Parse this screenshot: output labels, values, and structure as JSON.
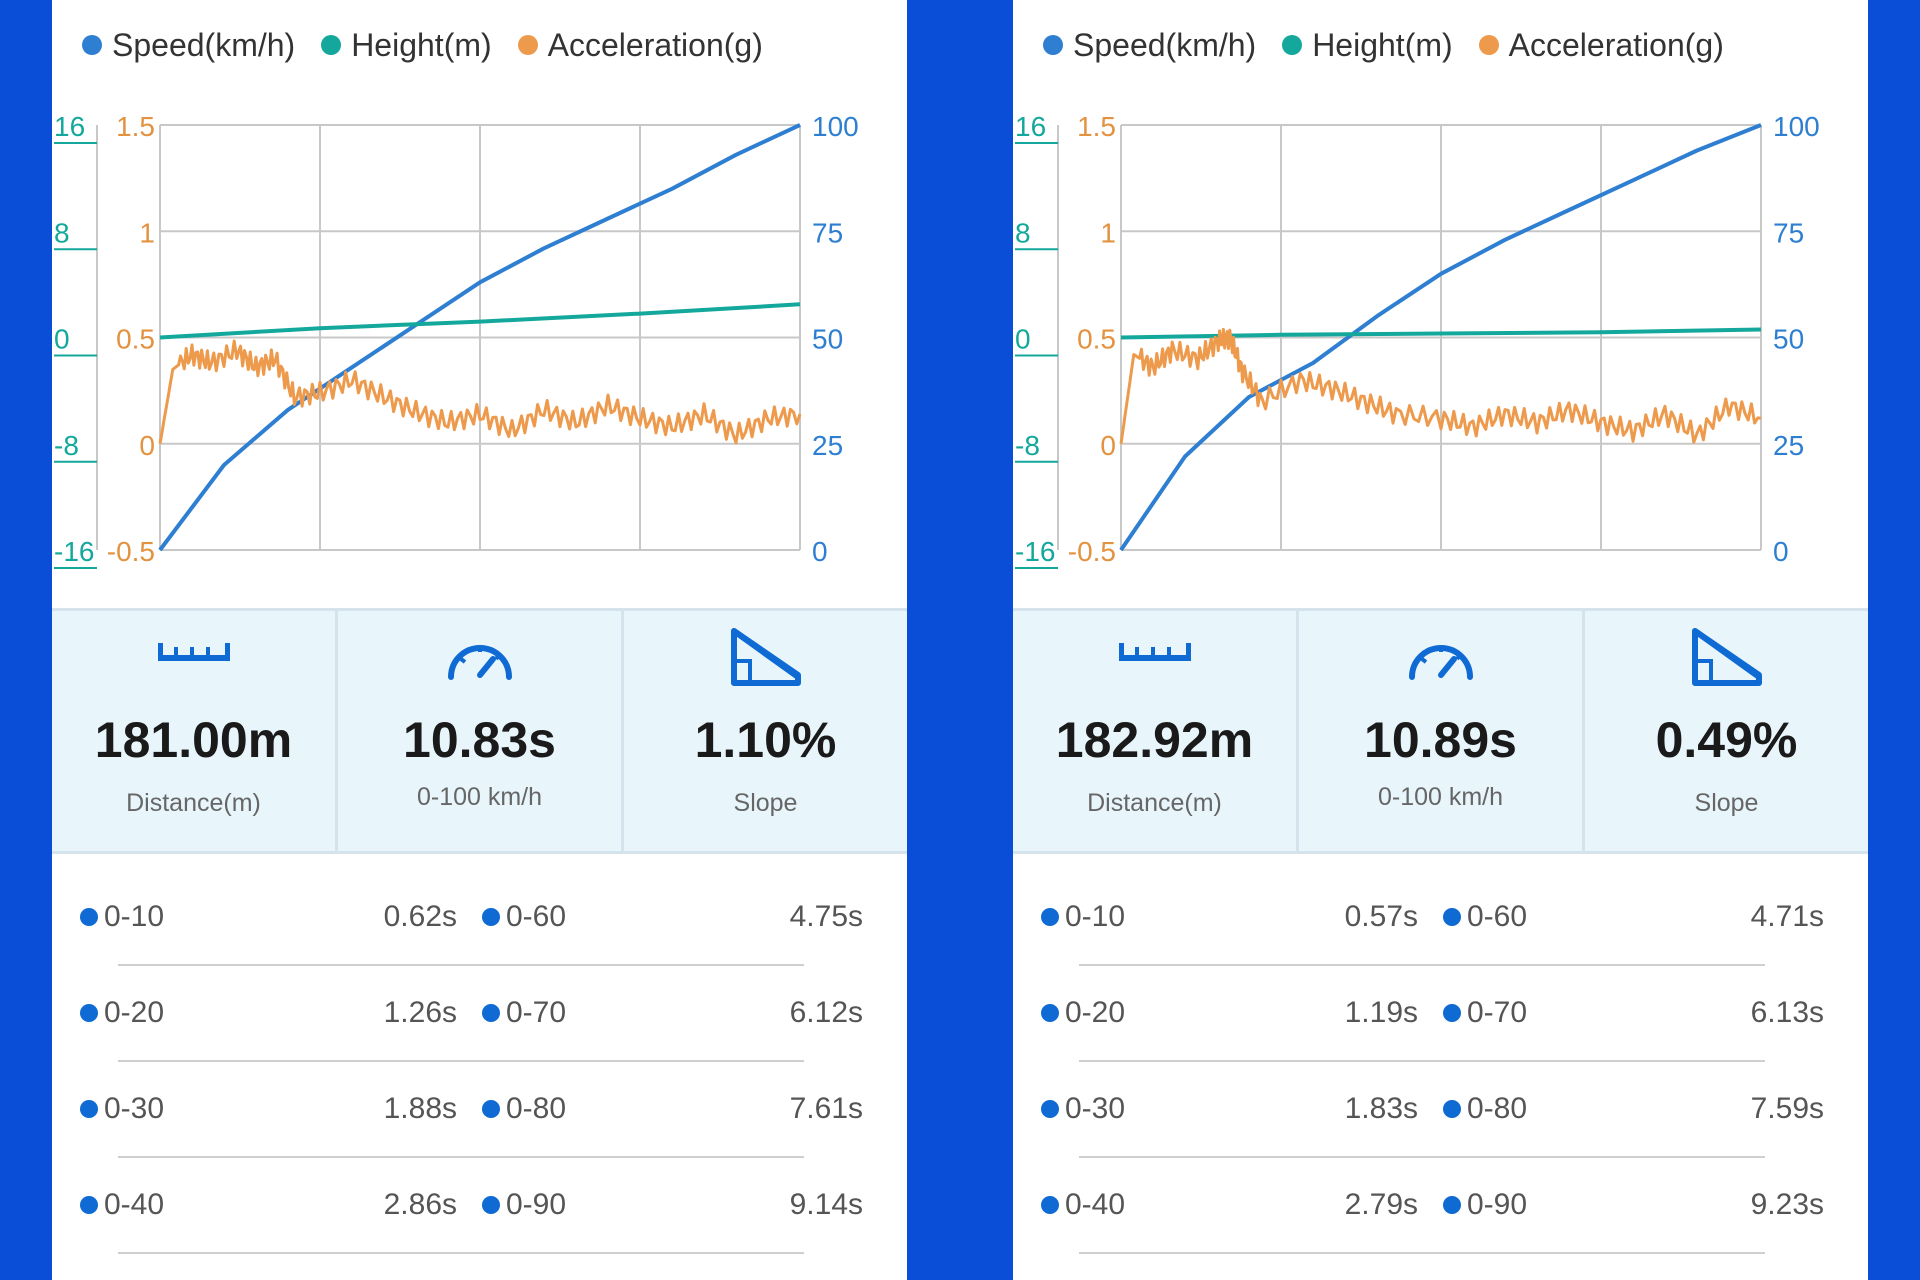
{
  "legend": [
    {
      "label": "Speed(km/h)",
      "color": "#2e7fd1"
    },
    {
      "label": "Height(m)",
      "color": "#14a89c"
    },
    {
      "label": "Acceleration(g)",
      "color": "#ee9a4d"
    }
  ],
  "colors": {
    "speed": "#2e7fd1",
    "height": "#14a89c",
    "acceleration": "#ee9a4d",
    "icon": "#0f6ad4"
  },
  "panels": [
    {
      "chart_data": {
        "type": "line",
        "axes": {
          "height_ticks": [
            "16",
            "8",
            "0",
            "-8",
            "-16"
          ],
          "accel_ticks": [
            "1.5",
            "1",
            "0.5",
            "0",
            "-0.5"
          ],
          "speed_ticks": [
            "100",
            "75",
            "50",
            "25",
            "0"
          ],
          "height_range": [
            -16,
            16
          ],
          "accel_range": [
            -0.5,
            1.5
          ],
          "speed_range": [
            0,
            100
          ],
          "grid": true
        },
        "series": [
          {
            "name": "Speed(km/h)",
            "axis": "right",
            "t": [
              0,
              0.1,
              0.2,
              0.3,
              0.4,
              0.5,
              0.6,
              0.7,
              0.8,
              0.9,
              1.0
            ],
            "values": [
              0,
              20,
              33,
              43,
              53,
              63,
              71,
              78,
              85,
              93,
              100
            ]
          },
          {
            "name": "Height(m)",
            "axis": "left",
            "t": [
              0,
              0.25,
              0.5,
              0.75,
              1.0
            ],
            "values": [
              0,
              0.7,
              1.2,
              1.8,
              2.5
            ]
          },
          {
            "name": "Acceleration(g)",
            "axis": "mid",
            "t": [
              0,
              0.02,
              0.05,
              0.08,
              0.12,
              0.15,
              0.18,
              0.21,
              0.25,
              0.3,
              0.35,
              0.4,
              0.45,
              0.5,
              0.55,
              0.6,
              0.65,
              0.7,
              0.75,
              0.8,
              0.85,
              0.9,
              0.95,
              1.0
            ],
            "values": [
              0.0,
              0.35,
              0.42,
              0.38,
              0.44,
              0.36,
              0.4,
              0.22,
              0.24,
              0.3,
              0.22,
              0.15,
              0.1,
              0.14,
              0.06,
              0.16,
              0.1,
              0.18,
              0.12,
              0.08,
              0.14,
              0.04,
              0.12,
              0.14
            ]
          }
        ]
      },
      "stats": [
        {
          "value": "181.00m",
          "label": "Distance(m)"
        },
        {
          "value": "10.83s",
          "label": "0-100 km/h"
        },
        {
          "value": "1.10%",
          "label": "Slope"
        }
      ],
      "times": [
        {
          "l1": "0-10",
          "v1": "0.62s",
          "l2": "0-60",
          "v2": "4.75s"
        },
        {
          "l1": "0-20",
          "v1": "1.26s",
          "l2": "0-70",
          "v2": "6.12s"
        },
        {
          "l1": "0-30",
          "v1": "1.88s",
          "l2": "0-80",
          "v2": "7.61s"
        },
        {
          "l1": "0-40",
          "v1": "2.86s",
          "l2": "0-90",
          "v2": "9.14s"
        }
      ]
    },
    {
      "chart_data": {
        "type": "line",
        "axes": {
          "height_ticks": [
            "16",
            "8",
            "0",
            "-8",
            "-16"
          ],
          "accel_ticks": [
            "1.5",
            "1",
            "0.5",
            "0",
            "-0.5"
          ],
          "speed_ticks": [
            "100",
            "75",
            "50",
            "25",
            "0"
          ],
          "height_range": [
            -16,
            16
          ],
          "accel_range": [
            -0.5,
            1.5
          ],
          "speed_range": [
            0,
            100
          ],
          "grid": true
        },
        "series": [
          {
            "name": "Speed(km/h)",
            "axis": "right",
            "t": [
              0,
              0.1,
              0.2,
              0.3,
              0.4,
              0.5,
              0.6,
              0.7,
              0.8,
              0.9,
              1.0
            ],
            "values": [
              0,
              22,
              36,
              44,
              55,
              65,
              73,
              80,
              87,
              94,
              100
            ]
          },
          {
            "name": "Height(m)",
            "axis": "left",
            "t": [
              0,
              0.25,
              0.5,
              0.75,
              1.0
            ],
            "values": [
              0,
              0.2,
              0.3,
              0.4,
              0.6
            ]
          },
          {
            "name": "Acceleration(g)",
            "axis": "mid",
            "t": [
              0,
              0.02,
              0.05,
              0.08,
              0.12,
              0.15,
              0.17,
              0.19,
              0.22,
              0.28,
              0.33,
              0.38,
              0.43,
              0.5,
              0.55,
              0.6,
              0.65,
              0.7,
              0.75,
              0.8,
              0.85,
              0.9,
              0.95,
              1.0
            ],
            "values": [
              0.0,
              0.42,
              0.36,
              0.44,
              0.4,
              0.48,
              0.5,
              0.34,
              0.2,
              0.3,
              0.26,
              0.2,
              0.14,
              0.12,
              0.08,
              0.14,
              0.1,
              0.16,
              0.1,
              0.06,
              0.14,
              0.04,
              0.18,
              0.12
            ]
          }
        ]
      },
      "stats": [
        {
          "value": "182.92m",
          "label": "Distance(m)"
        },
        {
          "value": "10.89s",
          "label": "0-100 km/h"
        },
        {
          "value": "0.49%",
          "label": "Slope"
        }
      ],
      "times": [
        {
          "l1": "0-10",
          "v1": "0.57s",
          "l2": "0-60",
          "v2": "4.71s"
        },
        {
          "l1": "0-20",
          "v1": "1.19s",
          "l2": "0-70",
          "v2": "6.13s"
        },
        {
          "l1": "0-30",
          "v1": "1.83s",
          "l2": "0-80",
          "v2": "7.59s"
        },
        {
          "l1": "0-40",
          "v1": "2.79s",
          "l2": "0-90",
          "v2": "9.23s"
        }
      ]
    }
  ]
}
